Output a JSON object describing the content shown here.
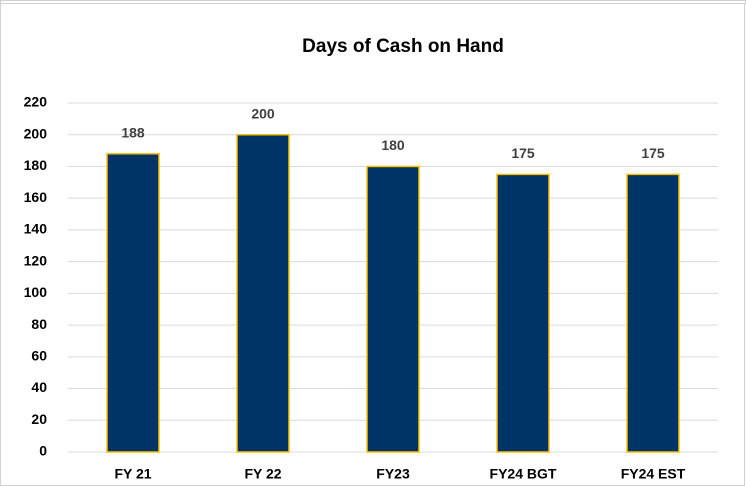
{
  "chart_data": {
    "type": "bar",
    "title": "Days of Cash on Hand",
    "categories": [
      "FY 21",
      "FY 22",
      "FY23",
      "FY24 BGT",
      "FY24 EST"
    ],
    "values": [
      188,
      200,
      180,
      175,
      175
    ],
    "color": "#003366",
    "edgecolor": "#ffc000",
    "ylim": [
      0,
      220
    ],
    "yticks": [
      0,
      20,
      40,
      60,
      80,
      100,
      120,
      140,
      160,
      180,
      200,
      220
    ],
    "grid": true
  }
}
